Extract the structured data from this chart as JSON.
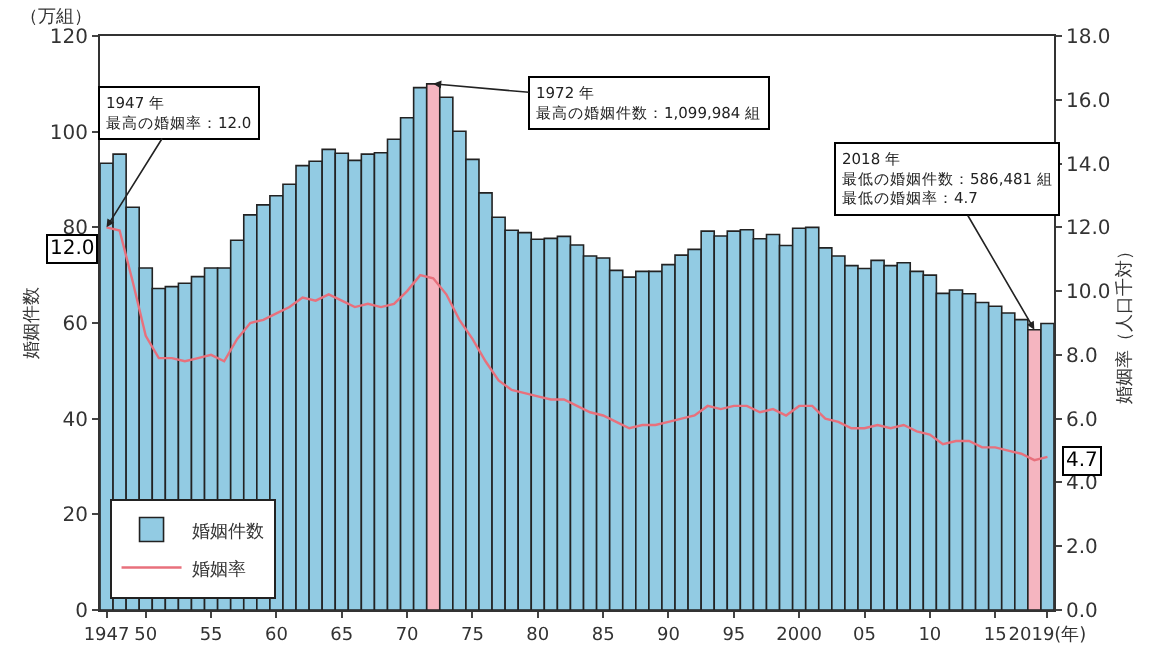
{
  "chart_data": {
    "type": "bar",
    "ylabel": "婚姻件数",
    "y2label": "婚姻率（人口千対）",
    "annotations": [
      "（万組）",
      {
        "text": "1947 年最高の婚姻率：12.0",
        "x": 1947,
        "y": 80
      },
      {
        "text": "1972 年最高の婚姻件数：1,099,984 組",
        "x": 1972,
        "y": 110.0
      },
      {
        "text": "2018 年最低の婚姻件数：586,481 組最低の婚姻率：4.7",
        "x": 2018,
        "y": 58.6
      }
    ],
    "x": [
      1947,
      1948,
      1949,
      1950,
      1951,
      1952,
      1953,
      1954,
      1955,
      1956,
      1957,
      1958,
      1959,
      1960,
      1961,
      1962,
      1963,
      1964,
      1965,
      1966,
      1967,
      1968,
      1969,
      1970,
      1971,
      1972,
      1973,
      1974,
      1975,
      1976,
      1977,
      1978,
      1979,
      1980,
      1981,
      1982,
      1983,
      1984,
      1985,
      1986,
      1987,
      1988,
      1989,
      1990,
      1991,
      1992,
      1993,
      1994,
      1995,
      1996,
      1997,
      1998,
      1999,
      2000,
      2001,
      2002,
      2003,
      2004,
      2005,
      2006,
      2007,
      2008,
      2009,
      2010,
      2011,
      2012,
      2013,
      2014,
      2015,
      2016,
      2017,
      2018,
      2019
    ],
    "series": [
      {
        "name": "婚姻件数",
        "color": "#92cbe3",
        "colors": [
          null,
          null,
          null,
          null,
          null,
          null,
          null,
          null,
          null,
          null,
          null,
          null,
          null,
          null,
          null,
          null,
          null,
          null,
          null,
          null,
          null,
          null,
          null,
          null,
          null,
          "#f5b5c0",
          null,
          null,
          null,
          null,
          null,
          null,
          null,
          null,
          null,
          null,
          null,
          null,
          null,
          null,
          null,
          null,
          null,
          null,
          null,
          null,
          null,
          null,
          null,
          null,
          null,
          null,
          null,
          null,
          null,
          null,
          null,
          null,
          null,
          null,
          null,
          null,
          null,
          null,
          null,
          null,
          null,
          null,
          null,
          null,
          null,
          "#f5b5c0",
          null
        ],
        "values": [
          93.4,
          95.3,
          84.2,
          71.5,
          67.2,
          67.6,
          68.3,
          69.7,
          71.5,
          71.5,
          77.3,
          82.6,
          84.7,
          86.6,
          89.0,
          92.9,
          93.8,
          96.3,
          95.5,
          94.0,
          95.3,
          95.6,
          98.4,
          102.9,
          109.2,
          110.0,
          107.2,
          100.1,
          94.2,
          87.2,
          82.1,
          79.4,
          78.9,
          77.5,
          77.7,
          78.1,
          76.3,
          74.0,
          73.6,
          71.0,
          69.6,
          70.8,
          70.8,
          72.2,
          74.2,
          75.4,
          79.2,
          78.2,
          79.2,
          79.5,
          77.6,
          78.5,
          76.2,
          79.8,
          80.0,
          75.7,
          74.0,
          72.0,
          71.4,
          73.1,
          72.0,
          72.6,
          70.8,
          70.0,
          66.2,
          66.9,
          66.1,
          64.3,
          63.5,
          62.1,
          60.7,
          58.6,
          59.9
        ]
      },
      {
        "name": "婚姻率",
        "type": "line",
        "axis": "y2",
        "color": "#e8707c",
        "values": [
          12.0,
          11.9,
          10.3,
          8.6,
          7.9,
          7.9,
          7.8,
          7.9,
          8.0,
          7.8,
          8.5,
          9.0,
          9.1,
          9.3,
          9.5,
          9.8,
          9.7,
          9.9,
          9.7,
          9.5,
          9.6,
          9.5,
          9.6,
          10.0,
          10.5,
          10.4,
          9.9,
          9.1,
          8.5,
          7.8,
          7.2,
          6.9,
          6.8,
          6.7,
          6.6,
          6.6,
          6.4,
          6.2,
          6.1,
          5.9,
          5.7,
          5.8,
          5.8,
          5.9,
          6.0,
          6.1,
          6.4,
          6.3,
          6.4,
          6.4,
          6.2,
          6.3,
          6.1,
          6.4,
          6.4,
          6.0,
          5.9,
          5.7,
          5.7,
          5.8,
          5.7,
          5.8,
          5.6,
          5.5,
          5.2,
          5.3,
          5.3,
          5.1,
          5.1,
          5.0,
          4.9,
          4.7,
          4.8
        ],
        "value_labels": [
          "12.0",
          null,
          null,
          null,
          null,
          null,
          null,
          null,
          null,
          null,
          null,
          null,
          null,
          null,
          null,
          null,
          null,
          null,
          null,
          null,
          null,
          null,
          null,
          null,
          null,
          null,
          null,
          null,
          null,
          null,
          null,
          null,
          null,
          null,
          null,
          null,
          null,
          null,
          null,
          null,
          null,
          null,
          null,
          null,
          null,
          null,
          null,
          null,
          null,
          null,
          null,
          null,
          null,
          null,
          null,
          null,
          null,
          null,
          null,
          null,
          null,
          null,
          null,
          null,
          null,
          null,
          null,
          null,
          null,
          null,
          null,
          "4.7",
          null
        ]
      }
    ],
    "xlim": [
      1946.5,
      2019.5
    ],
    "xticks": [
      1947,
      {
        "value": 1950,
        "label": "50"
      },
      {
        "value": 1955,
        "label": "55"
      },
      {
        "value": 1960,
        "label": "60"
      },
      {
        "value": 1965,
        "label": "65"
      },
      {
        "value": 1970,
        "label": "70"
      },
      {
        "value": 1975,
        "label": "75"
      },
      {
        "value": 1980,
        "label": "80"
      },
      {
        "value": 1985,
        "label": "85"
      },
      {
        "value": 1990,
        "label": "90"
      },
      {
        "value": 1995,
        "label": "95"
      },
      2000,
      {
        "value": 2005,
        "label": "05"
      },
      {
        "value": 2010,
        "label": "10"
      },
      {
        "value": 2015,
        "label": "15"
      },
      {
        "value": 2019,
        "label": "2019(年)"
      }
    ],
    "ylim": [
      0,
      120
    ],
    "yticks": [
      0,
      20,
      40,
      60,
      80,
      100,
      120
    ],
    "y2lim": [
      0,
      18
    ],
    "y2ticks": [
      {
        "value": 0,
        "label": "0.0"
      },
      {
        "value": 2,
        "label": "2.0"
      },
      {
        "value": 4,
        "label": "4.0"
      },
      {
        "value": 6,
        "label": "6.0"
      },
      {
        "value": 8,
        "label": "8.0"
      },
      {
        "value": 10,
        "label": "10.0"
      },
      {
        "value": 12,
        "label": "12.0"
      },
      {
        "value": 14,
        "label": "14.0"
      },
      {
        "value": 16,
        "label": "16.0"
      },
      {
        "value": 18,
        "label": "18.0"
      }
    ],
    "grid": false,
    "legend": "bottom left"
  }
}
